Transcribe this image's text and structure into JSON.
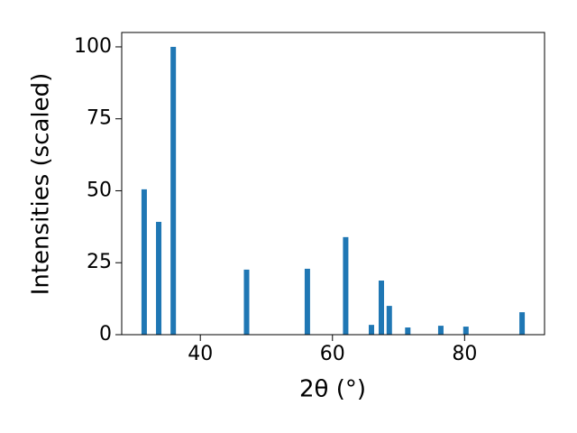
{
  "chart_data": {
    "type": "bar",
    "x": [
      31.5,
      33.7,
      35.9,
      47.0,
      56.2,
      62.0,
      65.9,
      67.4,
      68.6,
      71.4,
      76.4,
      80.2,
      88.7
    ],
    "values": [
      50.5,
      39.2,
      100,
      22.6,
      22.9,
      33.9,
      3.4,
      18.8,
      10.0,
      2.5,
      3.1,
      2.8,
      7.8
    ],
    "color": "#1f77b4",
    "xlabel": "2θ (°)",
    "ylabel": "Intensities (scaled)",
    "xlim": [
      28.1,
      92.1
    ],
    "xticks": [
      40,
      60,
      80
    ],
    "ylim": [
      0,
      105
    ],
    "yticks": [
      0,
      25,
      50,
      75,
      100
    ],
    "grid": false
  }
}
